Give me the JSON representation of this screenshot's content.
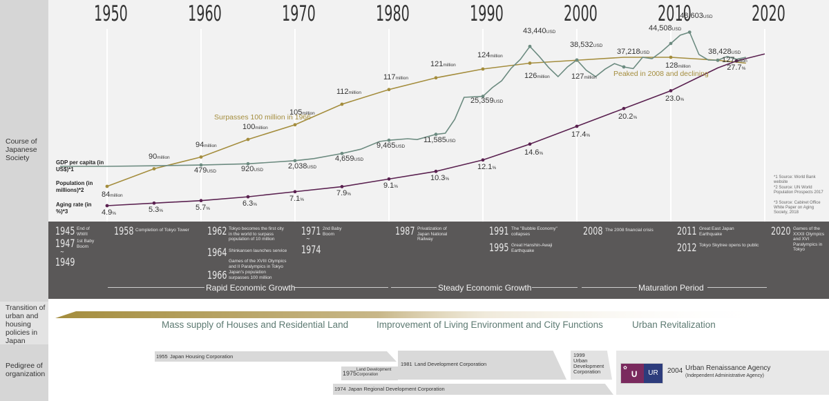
{
  "colors": {
    "population": "#a48d3d",
    "gdp": "#6c8b80",
    "aging": "#5a2150",
    "band": "#5a5858",
    "policy_text": "#5d7a72"
  },
  "decades": [
    "1950",
    "1960",
    "1970",
    "1980",
    "1990",
    "2000",
    "2010",
    "2020"
  ],
  "side": {
    "course": "Course of Japanese Society",
    "transition": "Transition of urban and housing policies in Japan",
    "pedigree": "Pedigree of organization"
  },
  "series_labels": {
    "gdp": "GDP per capita (in US$)*1",
    "population": "Population (in millions)*2",
    "aging": "Aging rate (in %)*3"
  },
  "annotations": {
    "surpasses": "Surpasses 100 million in 1966",
    "peaked": "Peaked in 2008 and declining"
  },
  "sources": [
    "*1 Source: World Bank website",
    "*2 Source: UN World Population Prospects 2017",
    "*3 Source: Cabinet Office White Paper on Aging Society, 2018"
  ],
  "chart_data": {
    "type": "line",
    "xlabel": "",
    "xlim": [
      1945,
      2020
    ],
    "series": [
      {
        "name": "Population",
        "unit": "million",
        "x": [
          1950,
          1955,
          1960,
          1965,
          1970,
          1975,
          1980,
          1985,
          1990,
          1995,
          2000,
          2005,
          2008,
          2010,
          2015,
          2018
        ],
        "values": [
          84,
          90,
          94,
          100,
          105,
          112,
          117,
          121,
          124,
          126,
          127,
          128,
          128,
          128,
          127,
          126
        ],
        "labels": [
          {
            "x": 1950,
            "value": "84",
            "unit": "million"
          },
          {
            "x": 1955,
            "value": "90",
            "unit": "million"
          },
          {
            "x": 1960,
            "value": "94",
            "unit": "million"
          },
          {
            "x": 1965,
            "value": "100",
            "unit": "million"
          },
          {
            "x": 1970,
            "value": "105",
            "unit": "million"
          },
          {
            "x": 1975,
            "value": "112",
            "unit": "million"
          },
          {
            "x": 1980,
            "value": "117",
            "unit": "million"
          },
          {
            "x": 1985,
            "value": "121",
            "unit": "million"
          },
          {
            "x": 1990,
            "value": "124",
            "unit": "million"
          },
          {
            "x": 1995,
            "value": "126",
            "unit": "million"
          },
          {
            "x": 2000,
            "value": "127",
            "unit": "million"
          },
          {
            "x": 2010,
            "value": "128",
            "unit": "million"
          },
          {
            "x": 2015,
            "value": "127",
            "unit": "million"
          }
        ]
      },
      {
        "name": "GDP per capita",
        "unit": "USD",
        "x": [
          1945,
          1950,
          1955,
          1960,
          1965,
          1970,
          1972,
          1975,
          1977,
          1979,
          1980,
          1982,
          1983,
          1985,
          1986,
          1987,
          1988,
          1990,
          1991,
          1992,
          1993,
          1994,
          1995,
          1996,
          1997,
          1998,
          1999,
          2000,
          2001,
          2002,
          2003,
          2004,
          2005,
          2006,
          2007,
          2008,
          2009,
          2010,
          2011,
          2012,
          2013,
          2014,
          2015,
          2016,
          2017,
          2018
        ],
        "values": [
          0,
          0,
          200,
          479,
          920,
          2038,
          2800,
          4659,
          6200,
          9000,
          9465,
          10000,
          9700,
          11585,
          12000,
          17000,
          25000,
          25359,
          28500,
          31000,
          35500,
          38800,
          43440,
          39800,
          35800,
          32500,
          36000,
          38532,
          34800,
          32500,
          35200,
          37218,
          36000,
          35400,
          39500,
          39000,
          41500,
          44508,
          47500,
          48603,
          40500,
          38500,
          38428,
          39800,
          38800,
          39500
        ],
        "labels": [
          {
            "x": 1960,
            "value": "479",
            "unit": "USD"
          },
          {
            "x": 1965,
            "value": "920",
            "unit": "USD"
          },
          {
            "x": 1970,
            "value": "2,038",
            "unit": "USD"
          },
          {
            "x": 1975,
            "value": "4,659",
            "unit": "USD"
          },
          {
            "x": 1980,
            "value": "9,465",
            "unit": "USD"
          },
          {
            "x": 1985,
            "value": "11,585",
            "unit": "USD"
          },
          {
            "x": 1990,
            "value": "25,359",
            "unit": "USD"
          },
          {
            "x": 1995,
            "value": "43,440",
            "unit": "USD"
          },
          {
            "x": 2000,
            "value": "38,532",
            "unit": "USD"
          },
          {
            "x": 2005,
            "value": "37,218",
            "unit": "USD"
          },
          {
            "x": 2010,
            "value": "44,508",
            "unit": "USD"
          },
          {
            "x": 2012,
            "value": "48,603",
            "unit": "USD"
          },
          {
            "x": 2015,
            "value": "38,428",
            "unit": "USD"
          }
        ]
      },
      {
        "name": "Aging rate",
        "unit": "%",
        "x": [
          1950,
          1955,
          1960,
          1965,
          1970,
          1975,
          1980,
          1985,
          1990,
          1995,
          2000,
          2005,
          2010,
          2015,
          2017,
          2020
        ],
        "values": [
          4.9,
          5.3,
          5.7,
          6.3,
          7.1,
          7.9,
          9.1,
          10.3,
          12.1,
          14.6,
          17.4,
          20.2,
          23.0,
          26.6,
          27.7,
          28.8
        ],
        "labels": [
          {
            "x": 1950,
            "value": "4.9",
            "unit": "%"
          },
          {
            "x": 1955,
            "value": "5.3",
            "unit": "%"
          },
          {
            "x": 1960,
            "value": "5.7",
            "unit": "%"
          },
          {
            "x": 1965,
            "value": "6.3",
            "unit": "%"
          },
          {
            "x": 1970,
            "value": "7.1",
            "unit": "%"
          },
          {
            "x": 1975,
            "value": "7.9",
            "unit": "%"
          },
          {
            "x": 1980,
            "value": "9.1",
            "unit": "%"
          },
          {
            "x": 1985,
            "value": "10.3",
            "unit": "%"
          },
          {
            "x": 1990,
            "value": "12.1",
            "unit": "%"
          },
          {
            "x": 1995,
            "value": "14.6",
            "unit": "%"
          },
          {
            "x": 2000,
            "value": "17.4",
            "unit": "%"
          },
          {
            "x": 2005,
            "value": "20.2",
            "unit": "%"
          },
          {
            "x": 2010,
            "value": "23.0",
            "unit": "%"
          },
          {
            "x": 2017,
            "value": "27.7",
            "unit": "%"
          }
        ]
      }
    ]
  },
  "events": [
    {
      "years": [
        "1945",
        "1947",
        "~",
        "1949"
      ],
      "texts": [
        "End of WWII",
        "1st Baby Boom"
      ]
    },
    {
      "years": [
        "1958"
      ],
      "texts": [
        "Completion of Tokyo Tower"
      ]
    },
    {
      "years": [
        "1962",
        "1964",
        "1966"
      ],
      "texts": [
        "Tokyo becomes the first city in the world to surpass population of 10 million",
        "Shinkansen launches service",
        "Games of the XVIII Olympics and II Paralympics in Tokyo",
        "Japan's population surpasses 100 million"
      ]
    },
    {
      "years": [
        "1971",
        "~",
        "1974"
      ],
      "texts": [
        "2nd Baby Boom"
      ]
    },
    {
      "years": [
        "1987"
      ],
      "texts": [
        "Privatization of Japan National Railway"
      ]
    },
    {
      "years": [
        "1991",
        "1995"
      ],
      "texts": [
        "The \"Bubble Economy\" collapses",
        "Great Hanshin-Awaji Earthquake"
      ]
    },
    {
      "years": [
        "2008"
      ],
      "texts": [
        "The 2008 financial crisis"
      ]
    },
    {
      "years": [
        "2011",
        "2012"
      ],
      "texts": [
        "Great East Japan Earthquake",
        "Tokyo Skytree opens to public"
      ]
    },
    {
      "years": [
        "2020"
      ],
      "texts": [
        "Games of the XXXII Olympics and XVI Paralympics in Tokyo"
      ]
    }
  ],
  "periods": [
    "Rapid Economic Growth",
    "Steady Economic Growth",
    "Maturation Period"
  ],
  "policies": [
    "Mass supply of Houses and Residential Land",
    "Improvement of Living Environment and City Functions",
    "Urban Revitalization"
  ],
  "orgs": [
    {
      "year": "1955",
      "name": "Japan Housing Corporation"
    },
    {
      "year": "1975",
      "name": "Land Development Corporation"
    },
    {
      "year": "1981",
      "name": "Land Development Corporation"
    },
    {
      "year": "1999",
      "name": "Urban Development Corporation"
    },
    {
      "year": "1974",
      "name": "Japan Regional   Development Corporation"
    },
    {
      "year": "2004",
      "name": "Urban Renaissance Agency",
      "sub": "(Independent Administrative Agency)",
      "logo": "UR"
    }
  ]
}
